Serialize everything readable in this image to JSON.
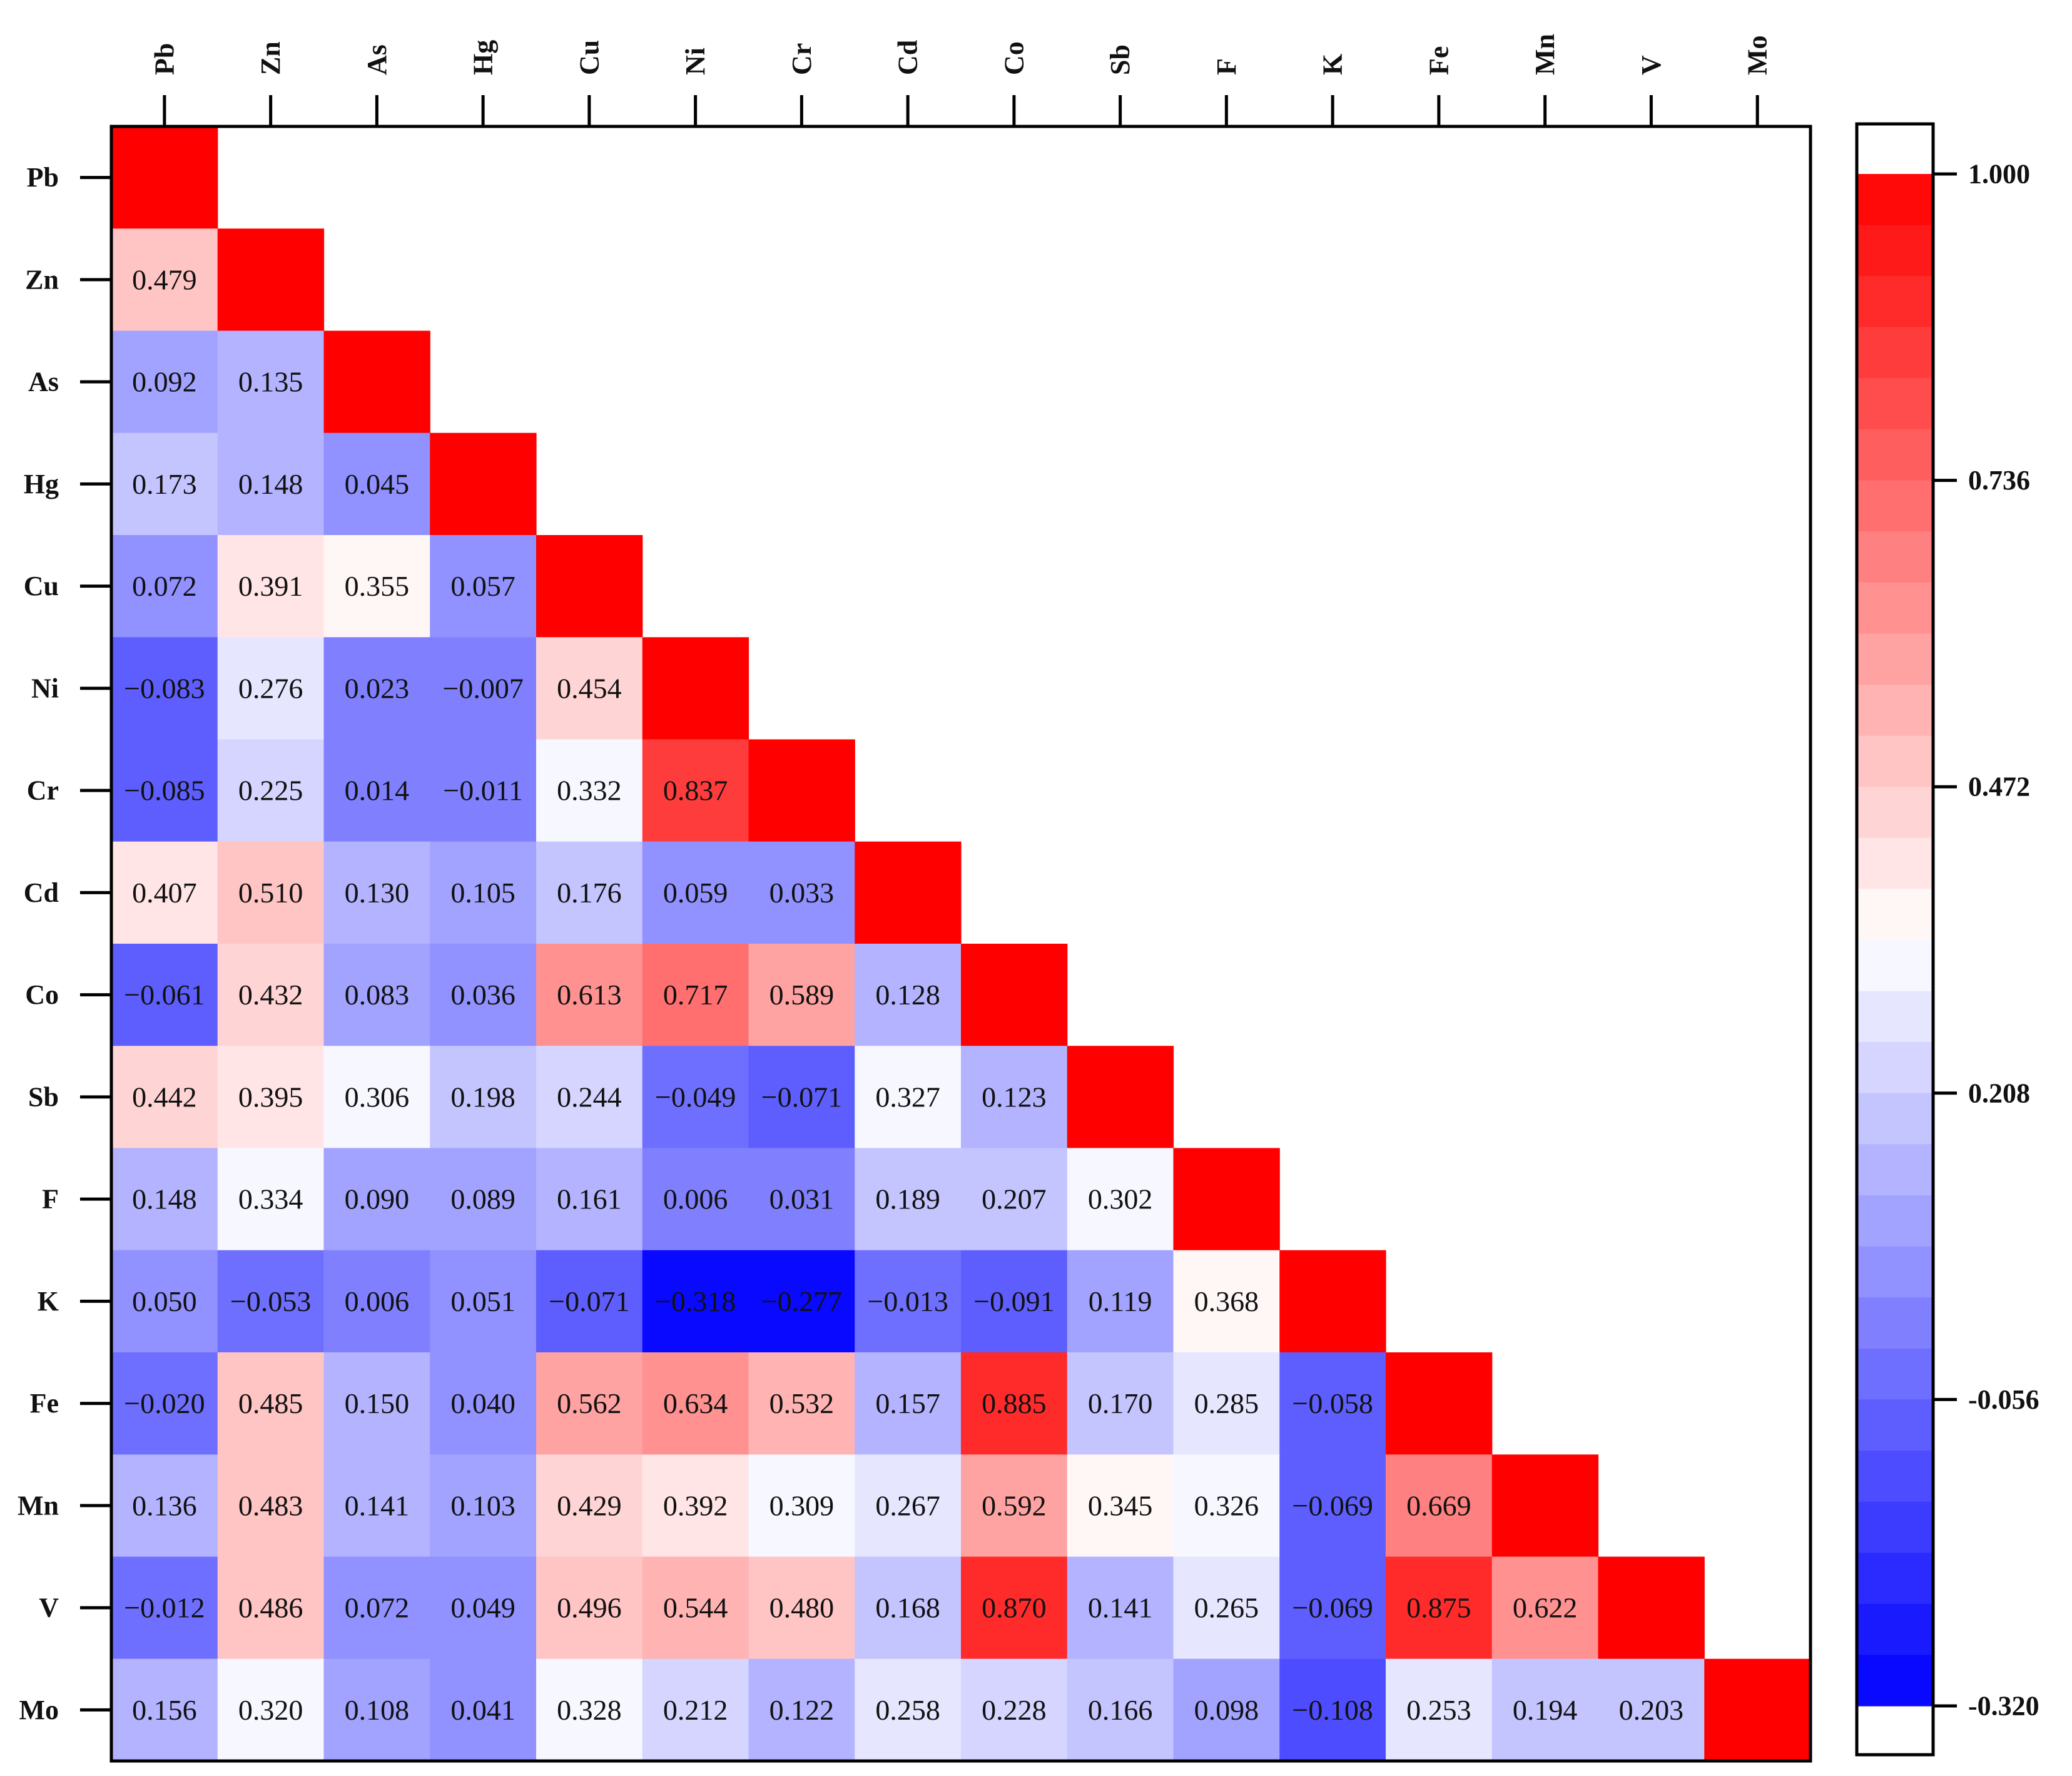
{
  "chart_data": {
    "type": "heatmap",
    "title": "",
    "variables": [
      "Pb",
      "Zn",
      "As",
      "Hg",
      "Cu",
      "Ni",
      "Cr",
      "Cd",
      "Co",
      "Sb",
      "F",
      "K",
      "Fe",
      "Mn",
      "V",
      "Mo"
    ],
    "layout": "lower-triangle",
    "diagonal_value": 1,
    "lower_triangle_values": [
      [],
      [
        0.479
      ],
      [
        0.092,
        0.135
      ],
      [
        0.173,
        0.148,
        0.045
      ],
      [
        0.072,
        0.391,
        0.355,
        0.057
      ],
      [
        -0.083,
        0.276,
        0.023,
        -0.007,
        0.454
      ],
      [
        -0.085,
        0.225,
        0.014,
        -0.011,
        0.332,
        0.837
      ],
      [
        0.407,
        0.51,
        0.13,
        0.105,
        0.176,
        0.059,
        0.033
      ],
      [
        -0.061,
        0.432,
        0.083,
        0.036,
        0.613,
        0.717,
        0.589,
        0.128
      ],
      [
        0.442,
        0.395,
        0.306,
        0.198,
        0.244,
        -0.049,
        -0.071,
        0.327,
        0.123
      ],
      [
        0.148,
        0.334,
        0.09,
        0.089,
        0.161,
        0.006,
        0.031,
        0.189,
        0.207,
        0.302
      ],
      [
        0.05,
        -0.053,
        0.006,
        0.051,
        -0.071,
        -0.318,
        -0.277,
        -0.013,
        -0.091,
        0.119,
        0.368
      ],
      [
        -0.02,
        0.485,
        0.15,
        0.04,
        0.562,
        0.634,
        0.532,
        0.157,
        0.885,
        0.17,
        0.285,
        -0.058
      ],
      [
        0.136,
        0.483,
        0.141,
        0.103,
        0.429,
        0.392,
        0.309,
        0.267,
        0.592,
        0.345,
        0.326,
        -0.069,
        0.669
      ],
      [
        -0.012,
        0.486,
        0.072,
        0.049,
        0.496,
        0.544,
        0.48,
        0.168,
        0.87,
        0.141,
        0.265,
        -0.069,
        0.875,
        0.622
      ],
      [
        0.156,
        0.32,
        0.108,
        0.041,
        0.328,
        0.212,
        0.122,
        0.258,
        0.228,
        0.166,
        0.098,
        -0.108,
        0.253,
        0.194,
        0.203
      ]
    ],
    "colorbar": {
      "range": [
        -0.32,
        1.0
      ],
      "ticks": [
        "1.000",
        "0.736",
        "0.472",
        "0.208",
        "-0.056",
        "-0.320"
      ],
      "low_color": "#0000ff",
      "mid_color": "#ffffff",
      "high_color": "#ff0000",
      "steps": 30
    }
  }
}
